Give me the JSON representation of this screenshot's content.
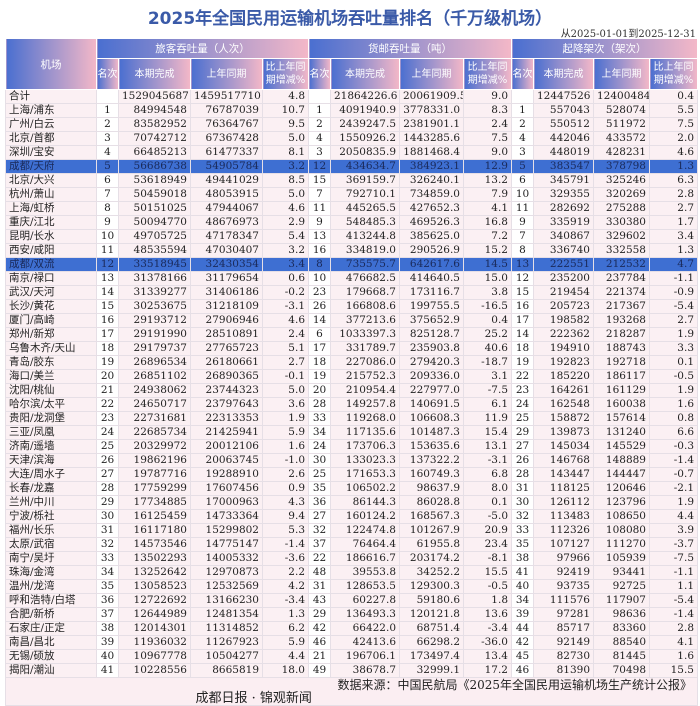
{
  "title": "2025年全国民用运输机场吞吐量排名（千万级机场）",
  "date_range": "从2025-01-01到2025-12-31",
  "headers": {
    "airport": "机场",
    "passenger": "旅客吞吐量（人次）",
    "cargo": "货邮吞吐量（吨）",
    "flights": "起降架次（架次）",
    "rank": "名次",
    "current": "本期完成",
    "last_year": "上年同期",
    "change": "比上年同期增减%"
  },
  "highlight_color": "#3e6fd2",
  "rows": [
    [
      "合计",
      "",
      "1529045687",
      "1459517710",
      "4.8",
      "",
      "21864226.6",
      "20061909.5",
      "9.0",
      "",
      "12447526",
      "12400484",
      "0.4"
    ],
    [
      "上海/浦东",
      "1",
      "84994548",
      "76787039",
      "10.7",
      "1",
      "4091940.9",
      "3778331.0",
      "8.3",
      "1",
      "557043",
      "528074",
      "5.5"
    ],
    [
      "广州/白云",
      "2",
      "83582952",
      "76364767",
      "9.5",
      "2",
      "2439247.5",
      "2381901.1",
      "2.4",
      "2",
      "550512",
      "511972",
      "7.5"
    ],
    [
      "北京/首都",
      "3",
      "70742712",
      "67367428",
      "5.0",
      "4",
      "1550926.2",
      "1443285.6",
      "7.5",
      "4",
      "442046",
      "433572",
      "2.0"
    ],
    [
      "深圳/宝安",
      "4",
      "66485213",
      "61477337",
      "8.1",
      "3",
      "2050835.9",
      "1881468.4",
      "9.0",
      "3",
      "448019",
      "428231",
      "4.6"
    ],
    [
      "成都/天府",
      "5",
      "56686738",
      "54905784",
      "3.2",
      "12",
      "434634.7",
      "384923.1",
      "12.9",
      "5",
      "383547",
      "378798",
      "1.3"
    ],
    [
      "北京/大兴",
      "6",
      "53618949",
      "49441029",
      "8.5",
      "15",
      "369159.7",
      "326240.1",
      "13.2",
      "6",
      "345791",
      "325246",
      "6.3"
    ],
    [
      "杭州/萧山",
      "7",
      "50459018",
      "48053915",
      "5.0",
      "7",
      "792710.1",
      "734859.0",
      "7.9",
      "10",
      "329355",
      "320269",
      "2.8"
    ],
    [
      "上海/虹桥",
      "8",
      "50151025",
      "47944067",
      "4.6",
      "11",
      "445265.5",
      "427652.3",
      "4.1",
      "11",
      "282692",
      "275288",
      "2.7"
    ],
    [
      "重庆/江北",
      "9",
      "50094770",
      "48676973",
      "2.9",
      "9",
      "548485.3",
      "469526.3",
      "16.8",
      "9",
      "335919",
      "330380",
      "1.7"
    ],
    [
      "昆明/长水",
      "10",
      "49705725",
      "47178347",
      "5.4",
      "13",
      "413244.8",
      "385625.0",
      "7.2",
      "7",
      "340867",
      "329602",
      "3.4"
    ],
    [
      "西安/咸阳",
      "11",
      "48535594",
      "47030407",
      "3.2",
      "16",
      "334819.0",
      "290526.9",
      "15.2",
      "8",
      "336740",
      "332558",
      "1.3"
    ],
    [
      "成都/双流",
      "12",
      "33518945",
      "32430354",
      "3.4",
      "8",
      "735575.7",
      "642617.6",
      "14.5",
      "13",
      "222551",
      "212532",
      "4.7"
    ],
    [
      "南京/禄口",
      "13",
      "31378166",
      "31179654",
      "0.6",
      "10",
      "476682.5",
      "414640.5",
      "15.0",
      "12",
      "235200",
      "237784",
      "-1.1"
    ],
    [
      "武汉/天河",
      "14",
      "31339277",
      "31406186",
      "-0.2",
      "23",
      "179668.7",
      "173116.7",
      "3.8",
      "15",
      "219454",
      "221374",
      "-0.9"
    ],
    [
      "长沙/黄花",
      "15",
      "30253675",
      "31218109",
      "-3.1",
      "26",
      "166808.6",
      "199755.5",
      "-16.5",
      "16",
      "205723",
      "217367",
      "-5.4"
    ],
    [
      "厦门/高崎",
      "16",
      "29193712",
      "27906946",
      "4.6",
      "14",
      "377213.6",
      "375652.9",
      "0.4",
      "17",
      "198582",
      "193268",
      "2.7"
    ],
    [
      "郑州/新郑",
      "17",
      "29191990",
      "28510891",
      "2.4",
      "6",
      "1033397.3",
      "825128.7",
      "25.2",
      "14",
      "222362",
      "218287",
      "1.9"
    ],
    [
      "乌鲁木齐/天山",
      "18",
      "29179737",
      "27765723",
      "5.1",
      "17",
      "331789.7",
      "235903.8",
      "40.6",
      "18",
      "194910",
      "188743",
      "3.3"
    ],
    [
      "青岛/胶东",
      "19",
      "26896534",
      "26180661",
      "2.7",
      "18",
      "227086.0",
      "279420.3",
      "-18.7",
      "19",
      "192823",
      "192718",
      "0.1"
    ],
    [
      "海口/美兰",
      "20",
      "26851102",
      "26890365",
      "-0.1",
      "19",
      "215752.3",
      "209336.0",
      "3.1",
      "22",
      "185220",
      "186117",
      "-0.5"
    ],
    [
      "沈阳/桃仙",
      "21",
      "24938062",
      "23744323",
      "5.0",
      "20",
      "210954.4",
      "227977.0",
      "-7.5",
      "23",
      "164261",
      "161129",
      "1.9"
    ],
    [
      "哈尔滨/太平",
      "22",
      "24650717",
      "23797643",
      "3.6",
      "28",
      "149257.8",
      "140691.5",
      "6.1",
      "24",
      "162548",
      "160038",
      "1.6"
    ],
    [
      "贵阳/龙洞堡",
      "23",
      "22731681",
      "22313353",
      "1.9",
      "33",
      "119268.0",
      "106608.3",
      "11.9",
      "25",
      "158872",
      "157614",
      "0.8"
    ],
    [
      "三亚/凤凰",
      "24",
      "22685734",
      "21425941",
      "5.9",
      "34",
      "117135.6",
      "101487.3",
      "15.4",
      "29",
      "139873",
      "131240",
      "6.6"
    ],
    [
      "济南/遥墙",
      "25",
      "20329972",
      "20012106",
      "1.6",
      "24",
      "173706.3",
      "153635.6",
      "13.1",
      "27",
      "145034",
      "145529",
      "-0.3"
    ],
    [
      "天津/滨海",
      "26",
      "19862196",
      "20063745",
      "-1.0",
      "30",
      "133023.3",
      "137322.2",
      "-3.1",
      "26",
      "146768",
      "148889",
      "-1.4"
    ],
    [
      "大连/周水子",
      "27",
      "19787716",
      "19288910",
      "2.6",
      "25",
      "171653.3",
      "160749.3",
      "6.8",
      "28",
      "143447",
      "144447",
      "-0.7"
    ],
    [
      "长春/龙嘉",
      "28",
      "17759299",
      "17607456",
      "0.9",
      "35",
      "106502.2",
      "98637.9",
      "8.0",
      "31",
      "118125",
      "120646",
      "-2.1"
    ],
    [
      "兰州/中川",
      "29",
      "17734885",
      "17000963",
      "4.3",
      "36",
      "86144.3",
      "86028.8",
      "0.1",
      "30",
      "126112",
      "123796",
      "1.9"
    ],
    [
      "宁波/栎社",
      "30",
      "16125459",
      "14733364",
      "9.4",
      "27",
      "160124.2",
      "168567.3",
      "-5.0",
      "32",
      "113483",
      "108650",
      "4.4"
    ],
    [
      "福州/长乐",
      "31",
      "16117180",
      "15299802",
      "5.3",
      "32",
      "122474.8",
      "101267.9",
      "20.9",
      "33",
      "112326",
      "108080",
      "3.9"
    ],
    [
      "太原/武宿",
      "32",
      "14573546",
      "14775147",
      "-1.4",
      "37",
      "76464.4",
      "61955.8",
      "23.4",
      "35",
      "107127",
      "111270",
      "-3.7"
    ],
    [
      "南宁/吴圩",
      "33",
      "13502293",
      "14005332",
      "-3.6",
      "22",
      "186616.7",
      "203174.2",
      "-8.1",
      "38",
      "97966",
      "105939",
      "-7.5"
    ],
    [
      "珠海/金湾",
      "34",
      "13252642",
      "12970873",
      "2.2",
      "48",
      "39553.8",
      "34252.2",
      "15.5",
      "41",
      "92419",
      "93441",
      "-1.1"
    ],
    [
      "温州/龙湾",
      "35",
      "13058523",
      "12532569",
      "4.2",
      "31",
      "128653.5",
      "129300.3",
      "-0.5",
      "40",
      "93735",
      "92725",
      "1.1"
    ],
    [
      "呼和浩特/白塔",
      "36",
      "12722692",
      "13166230",
      "-3.4",
      "43",
      "60227.8",
      "59180.6",
      "1.8",
      "34",
      "111576",
      "117907",
      "-5.4"
    ],
    [
      "合肥/新桥",
      "37",
      "12644989",
      "12481354",
      "1.3",
      "29",
      "136493.3",
      "120121.8",
      "13.6",
      "39",
      "97281",
      "98636",
      "-1.4"
    ],
    [
      "石家庄/正定",
      "38",
      "12014301",
      "11314852",
      "6.2",
      "42",
      "66422.0",
      "68751.4",
      "-3.4",
      "44",
      "85717",
      "83360",
      "2.8"
    ],
    [
      "南昌/昌北",
      "39",
      "11936032",
      "11267923",
      "5.9",
      "46",
      "42413.6",
      "66298.2",
      "-36.0",
      "42",
      "92149",
      "88540",
      "4.1"
    ],
    [
      "无锡/硕放",
      "40",
      "10967778",
      "10504277",
      "4.4",
      "21",
      "196706.1",
      "173497.4",
      "13.4",
      "45",
      "82730",
      "81445",
      "1.6"
    ],
    [
      "揭阳/潮汕",
      "41",
      "10228556",
      "8665819",
      "18.0",
      "49",
      "38678.7",
      "32999.1",
      "17.2",
      "46",
      "81390",
      "70498",
      "15.5"
    ]
  ],
  "highlighted_airports": [
    "成都/天府",
    "成都/双流"
  ],
  "footer": {
    "publisher": "成都日报 · 锦观新闻",
    "source": "数据来源：中国民航局《2025年全国民用运输机场生产统计公报》"
  }
}
